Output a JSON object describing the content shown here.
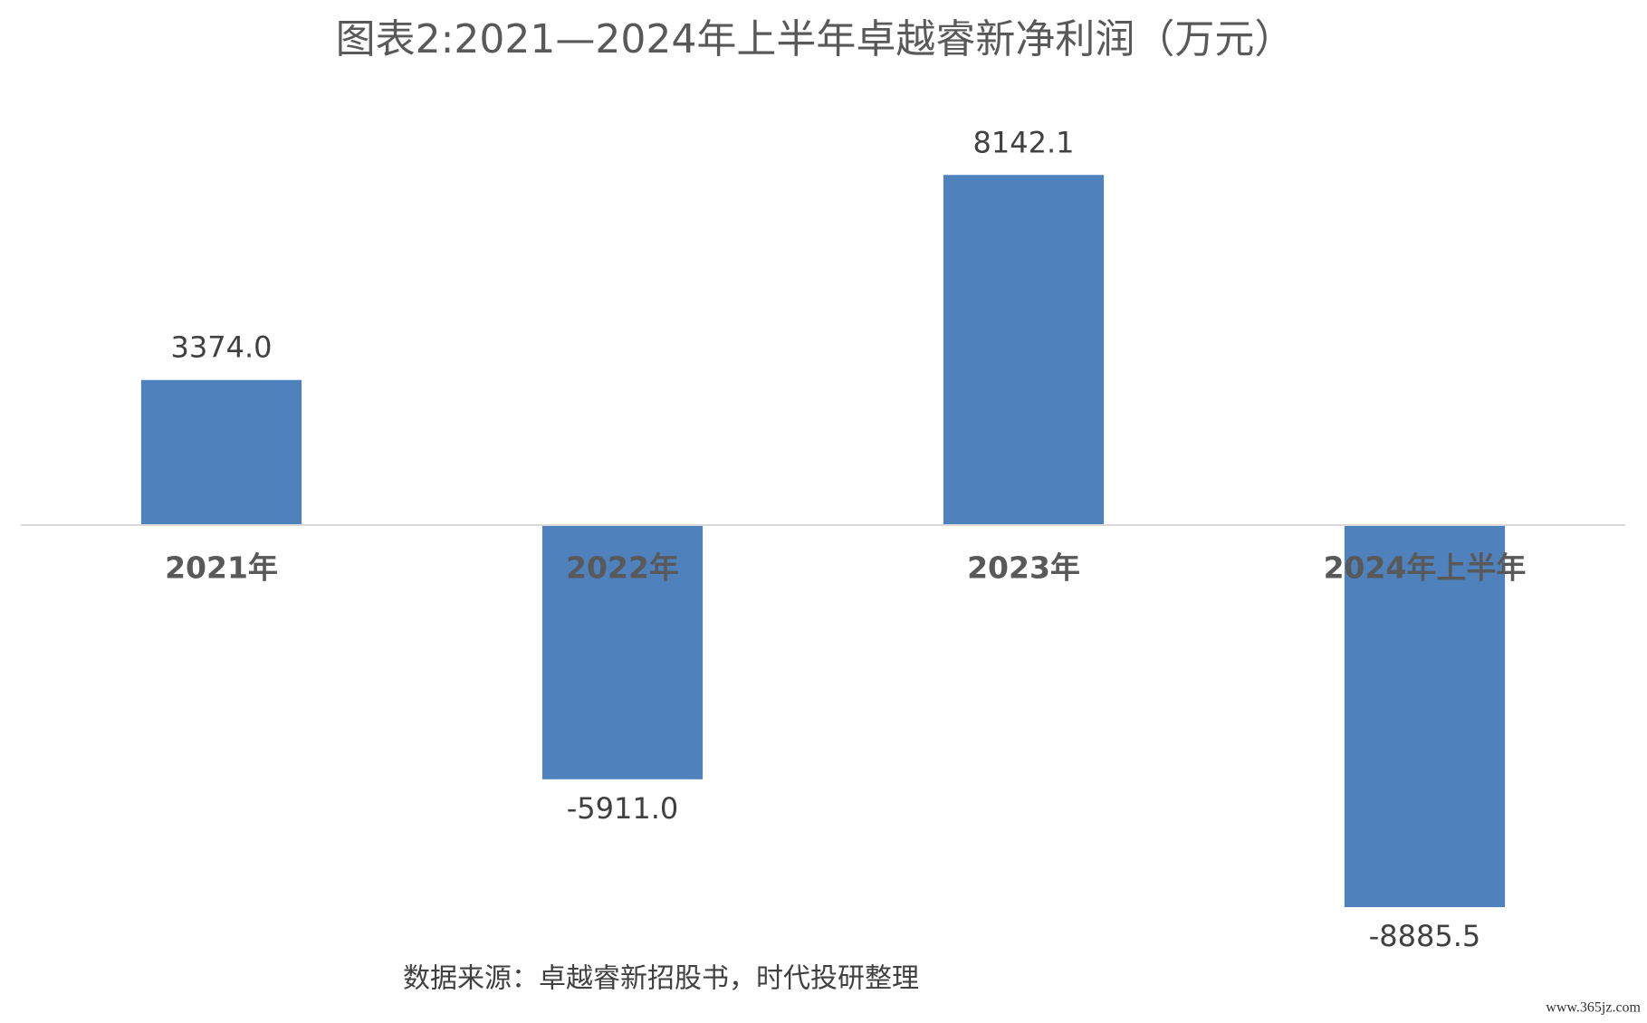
{
  "chart_data": {
    "type": "bar",
    "title": "图表2:2021—2024年上半年卓越睿新净利润（万元）",
    "categories": [
      "2021年",
      "2022年",
      "2023年",
      "2024年上半年"
    ],
    "values": [
      3374.0,
      -5911.0,
      8142.1,
      -8885.5
    ],
    "value_labels": [
      "3374.0",
      "-5911.0",
      "8142.1",
      "-8885.5"
    ],
    "color": "#4f81bd",
    "ylim": [
      -10000,
      10000
    ],
    "source": "数据来源：卓越睿新招股书，时代投研整理",
    "watermark": "www.365jz.com"
  }
}
